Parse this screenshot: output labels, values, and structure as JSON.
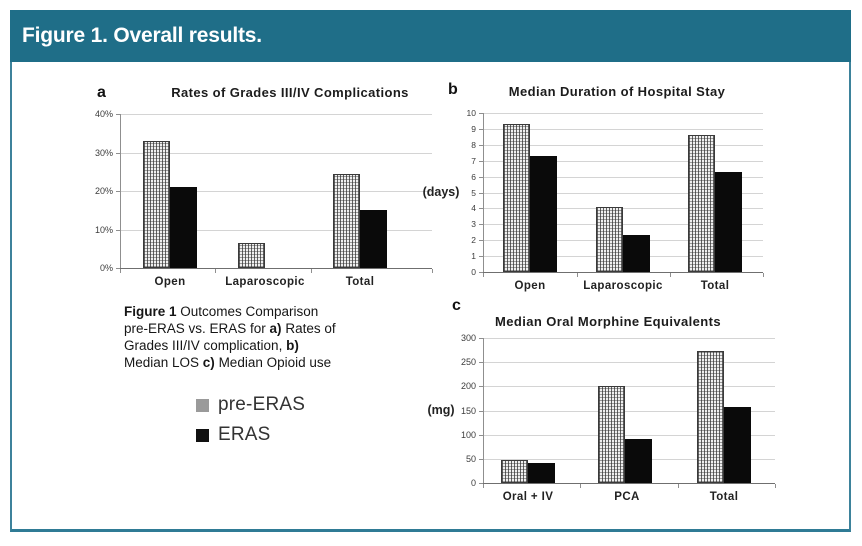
{
  "header": {
    "title": "Figure 1. Overall results."
  },
  "colors": {
    "header_bg": "#1f6e88",
    "panel_border": "#2f7b95",
    "pre_eras_swatch": "#9a9a9a",
    "eras_swatch": "#111111",
    "gridline": "#d4d4d4"
  },
  "caption": {
    "lines": [
      [
        {
          "t": "Figure 1",
          "b": true
        },
        {
          "t": "  Outcomes Comparison",
          "b": false
        }
      ],
      [
        {
          "t": "pre-ERAS vs. ERAS for ",
          "b": false
        },
        {
          "t": "a)",
          "b": true
        },
        {
          "t": " Rates of",
          "b": false
        }
      ],
      [
        {
          "t": "Grades III/IV complication, ",
          "b": false
        },
        {
          "t": "b)",
          "b": true
        }
      ],
      [
        {
          "t": "Median LOS ",
          "b": false
        },
        {
          "t": "c)",
          "b": true
        },
        {
          "t": " Median Opioid use",
          "b": false
        }
      ]
    ]
  },
  "legend": {
    "items": [
      {
        "key": "pre-eras",
        "label": "pre-ERAS",
        "swatch": "#9a9a9a"
      },
      {
        "key": "eras",
        "label": "ERAS",
        "swatch": "#111111"
      }
    ]
  },
  "chart_data": [
    {
      "id": "a",
      "type": "bar",
      "panel_label": "a",
      "title": "Rates of Grades III/IV Complications",
      "categories": [
        "Open",
        "Laparoscopic",
        "Total"
      ],
      "series": [
        {
          "name": "pre-ERAS",
          "values": [
            33,
            6.5,
            24.5
          ]
        },
        {
          "name": "ERAS",
          "values": [
            21,
            0,
            15
          ]
        }
      ],
      "ylabel": "",
      "ylim": [
        0,
        40
      ],
      "ytick_values": [
        0,
        10,
        20,
        30,
        40
      ],
      "ytick_labels": [
        "0%",
        "10%",
        "20%",
        "30%",
        "40%"
      ],
      "grid": true,
      "legend_position": "below-left"
    },
    {
      "id": "b",
      "type": "bar",
      "panel_label": "b",
      "title": "Median Duration of Hospital Stay",
      "categories": [
        "Open",
        "Laparoscopic",
        "Total"
      ],
      "series": [
        {
          "name": "pre-ERAS",
          "values": [
            9.3,
            4.1,
            8.6
          ]
        },
        {
          "name": "ERAS",
          "values": [
            7.3,
            2.3,
            6.3
          ]
        }
      ],
      "ylabel": "(days)",
      "ylim": [
        0,
        10
      ],
      "ytick_values": [
        0,
        1,
        2,
        3,
        4,
        5,
        6,
        7,
        8,
        9,
        10
      ],
      "ytick_labels": [
        "0",
        "1",
        "2",
        "3",
        "4",
        "5",
        "6",
        "7",
        "8",
        "9",
        "10"
      ],
      "grid": true,
      "legend_position": "none"
    },
    {
      "id": "c",
      "type": "bar",
      "panel_label": "c",
      "title": "Median Oral Morphine Equivalents",
      "categories": [
        "Oral + IV",
        "PCA",
        "Total"
      ],
      "series": [
        {
          "name": "pre-ERAS",
          "values": [
            48,
            200,
            273
          ]
        },
        {
          "name": "ERAS",
          "values": [
            42,
            92,
            158
          ]
        }
      ],
      "ylabel": "(mg)",
      "ylim": [
        0,
        300
      ],
      "ytick_values": [
        0,
        50,
        100,
        150,
        200,
        250,
        300
      ],
      "ytick_labels": [
        "0",
        "50",
        "100",
        "150",
        "200",
        "250",
        "300"
      ],
      "grid": true,
      "legend_position": "none"
    }
  ]
}
